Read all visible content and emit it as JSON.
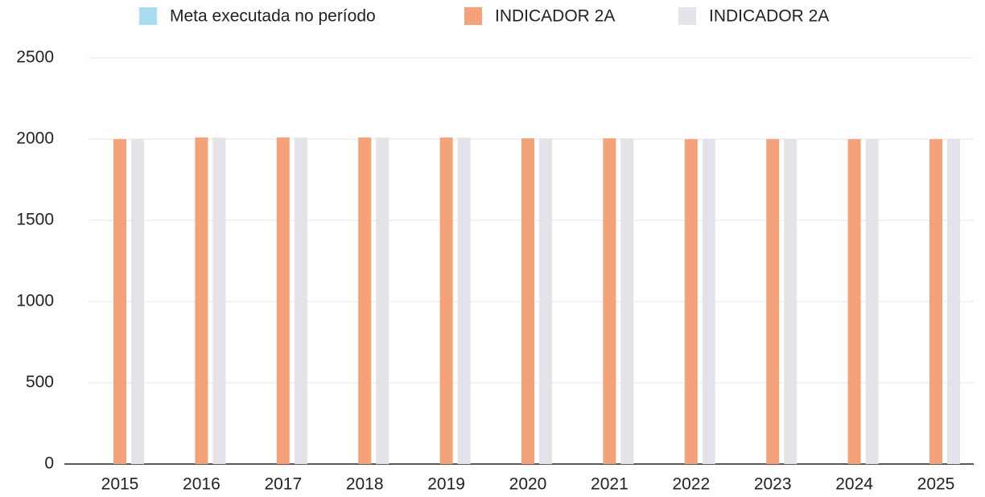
{
  "chart_data": {
    "type": "bar",
    "categories": [
      "2015",
      "2016",
      "2017",
      "2018",
      "2019",
      "2020",
      "2021",
      "2022",
      "2023",
      "2024",
      "2025"
    ],
    "series": [
      {
        "name": "Meta executada no período",
        "color": "#a8dcef",
        "values": [
          null,
          null,
          null,
          null,
          null,
          null,
          null,
          null,
          null,
          null,
          null
        ]
      },
      {
        "name": "INDICADOR 2A",
        "color": "#f5a27a",
        "values": [
          2000,
          2010,
          2010,
          2010,
          2010,
          2005,
          2005,
          2000,
          2000,
          2000,
          2000
        ]
      },
      {
        "name": "INDICADOR 2A",
        "color": "#e4e3ea",
        "values": [
          2000,
          2010,
          2010,
          2010,
          2010,
          2005,
          2005,
          2000,
          2000,
          2000,
          2000
        ]
      }
    ],
    "ylim": [
      0,
      2500
    ],
    "yticks": [
      0,
      500,
      1000,
      1500,
      2000,
      2500
    ],
    "grid": true,
    "legend": "top"
  }
}
